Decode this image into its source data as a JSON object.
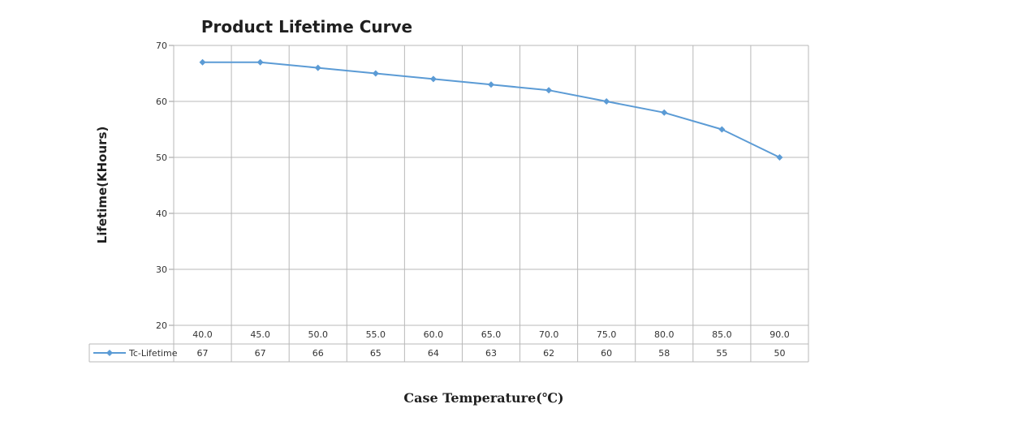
{
  "chart_data": {
    "type": "line",
    "title": "Product Lifetime Curve",
    "xlabel": "Case Temperature(℃)",
    "ylabel": "Lifetime(KHours)",
    "ylim": [
      20,
      70
    ],
    "yticks": [
      "20",
      "30",
      "40",
      "50",
      "60",
      "70"
    ],
    "yticks_values": [
      20,
      30,
      40,
      50,
      60,
      70
    ],
    "categories": [
      "40.0",
      "45.0",
      "50.0",
      "55.0",
      "60.0",
      "65.0",
      "70.0",
      "75.0",
      "80.0",
      "85.0",
      "90.0"
    ],
    "series": [
      {
        "name": "Tc-Lifetime",
        "values": [
          67,
          67,
          66,
          65,
          64,
          63,
          62,
          60,
          58,
          55,
          50
        ],
        "labels": [
          "67",
          "67",
          "66",
          "65",
          "64",
          "63",
          "62",
          "60",
          "58",
          "55",
          "50"
        ],
        "color": "#5b9bd5"
      }
    ],
    "grid": true,
    "legend": "data-table-left"
  }
}
